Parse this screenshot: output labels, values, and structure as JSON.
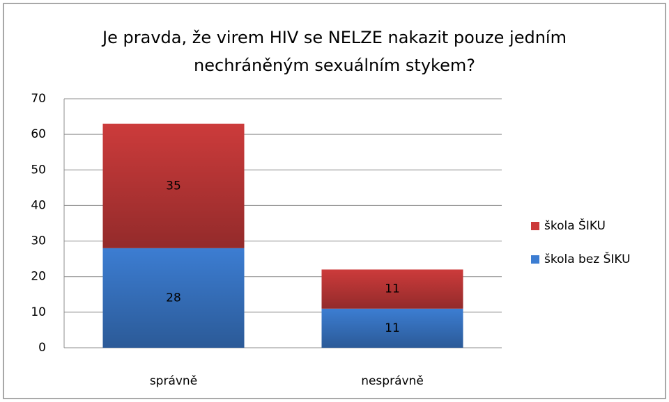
{
  "chart_data": {
    "type": "stacked_bar",
    "title": "Je pravda, že virem HIV se NELZE nakazit pouze jedním nechráněným sexuálním stykem?",
    "categories": [
      "správně",
      "nesprávně"
    ],
    "series": [
      {
        "name": "škola bez ŠIKU",
        "color": "#3c7dd2",
        "values": [
          28,
          11
        ]
      },
      {
        "name": "škola ŠIKU",
        "color": "#cc3b3b",
        "values": [
          35,
          11
        ]
      }
    ],
    "ylim": [
      0,
      70
    ],
    "yticks": [
      0,
      10,
      20,
      30,
      40,
      50,
      60,
      70
    ],
    "grid": true,
    "legend": "right"
  }
}
